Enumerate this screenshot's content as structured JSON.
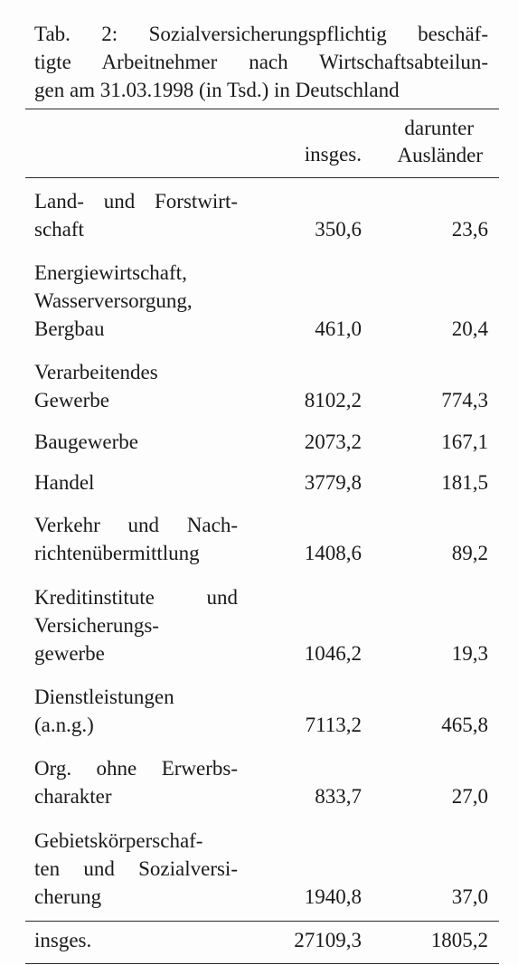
{
  "caption": {
    "line1": "Tab. 2: Sozialversicherungspflichtig beschäf-",
    "line2": "tigte Arbeitnehmer nach Wirtschaftsabteilun-",
    "line3": "gen am 31.03.1998 (in Tsd.) in Deutschland"
  },
  "header": {
    "total": "insges.",
    "foreign_line1": "darunter",
    "foreign_line2": "Ausländer"
  },
  "rows": [
    {
      "label_lines": [
        "Land- und Forstwirt-",
        "schaft"
      ],
      "total": "350,6",
      "foreign": "23,6"
    },
    {
      "label_lines": [
        "Energiewirtschaft,",
        "Wasserversorgung,",
        "Bergbau"
      ],
      "total": "461,0",
      "foreign": "20,4"
    },
    {
      "label_lines": [
        "Verarbeitendes",
        "Gewerbe"
      ],
      "total": "8102,2",
      "foreign": "774,3"
    },
    {
      "label_lines": [
        "Baugewerbe"
      ],
      "total": "2073,2",
      "foreign": "167,1"
    },
    {
      "label_lines": [
        "Handel"
      ],
      "total": "3779,8",
      "foreign": "181,5"
    },
    {
      "label_lines": [
        "Verkehr und Nach-",
        "richtenübermittlung"
      ],
      "total": "1408,6",
      "foreign": "89,2"
    },
    {
      "label_lines": [
        "Kreditinstitute und",
        "Versicherungs-",
        "gewerbe"
      ],
      "total": "1046,2",
      "foreign": "19,3"
    },
    {
      "label_lines": [
        "Dienstleistungen",
        "(a.n.g.)"
      ],
      "total": "7113,2",
      "foreign": "465,8"
    },
    {
      "label_lines": [
        "Org. ohne Erwerbs-",
        "charakter"
      ],
      "total": "833,7",
      "foreign": "27,0"
    },
    {
      "label_lines": [
        "Gebietskörperschaf-",
        "ten und Sozialversi-",
        "cherung"
      ],
      "total": "1940,8",
      "foreign": "37,0"
    }
  ],
  "total_row": {
    "label": "insges.",
    "total": "27109,3",
    "foreign": "1805,2"
  }
}
